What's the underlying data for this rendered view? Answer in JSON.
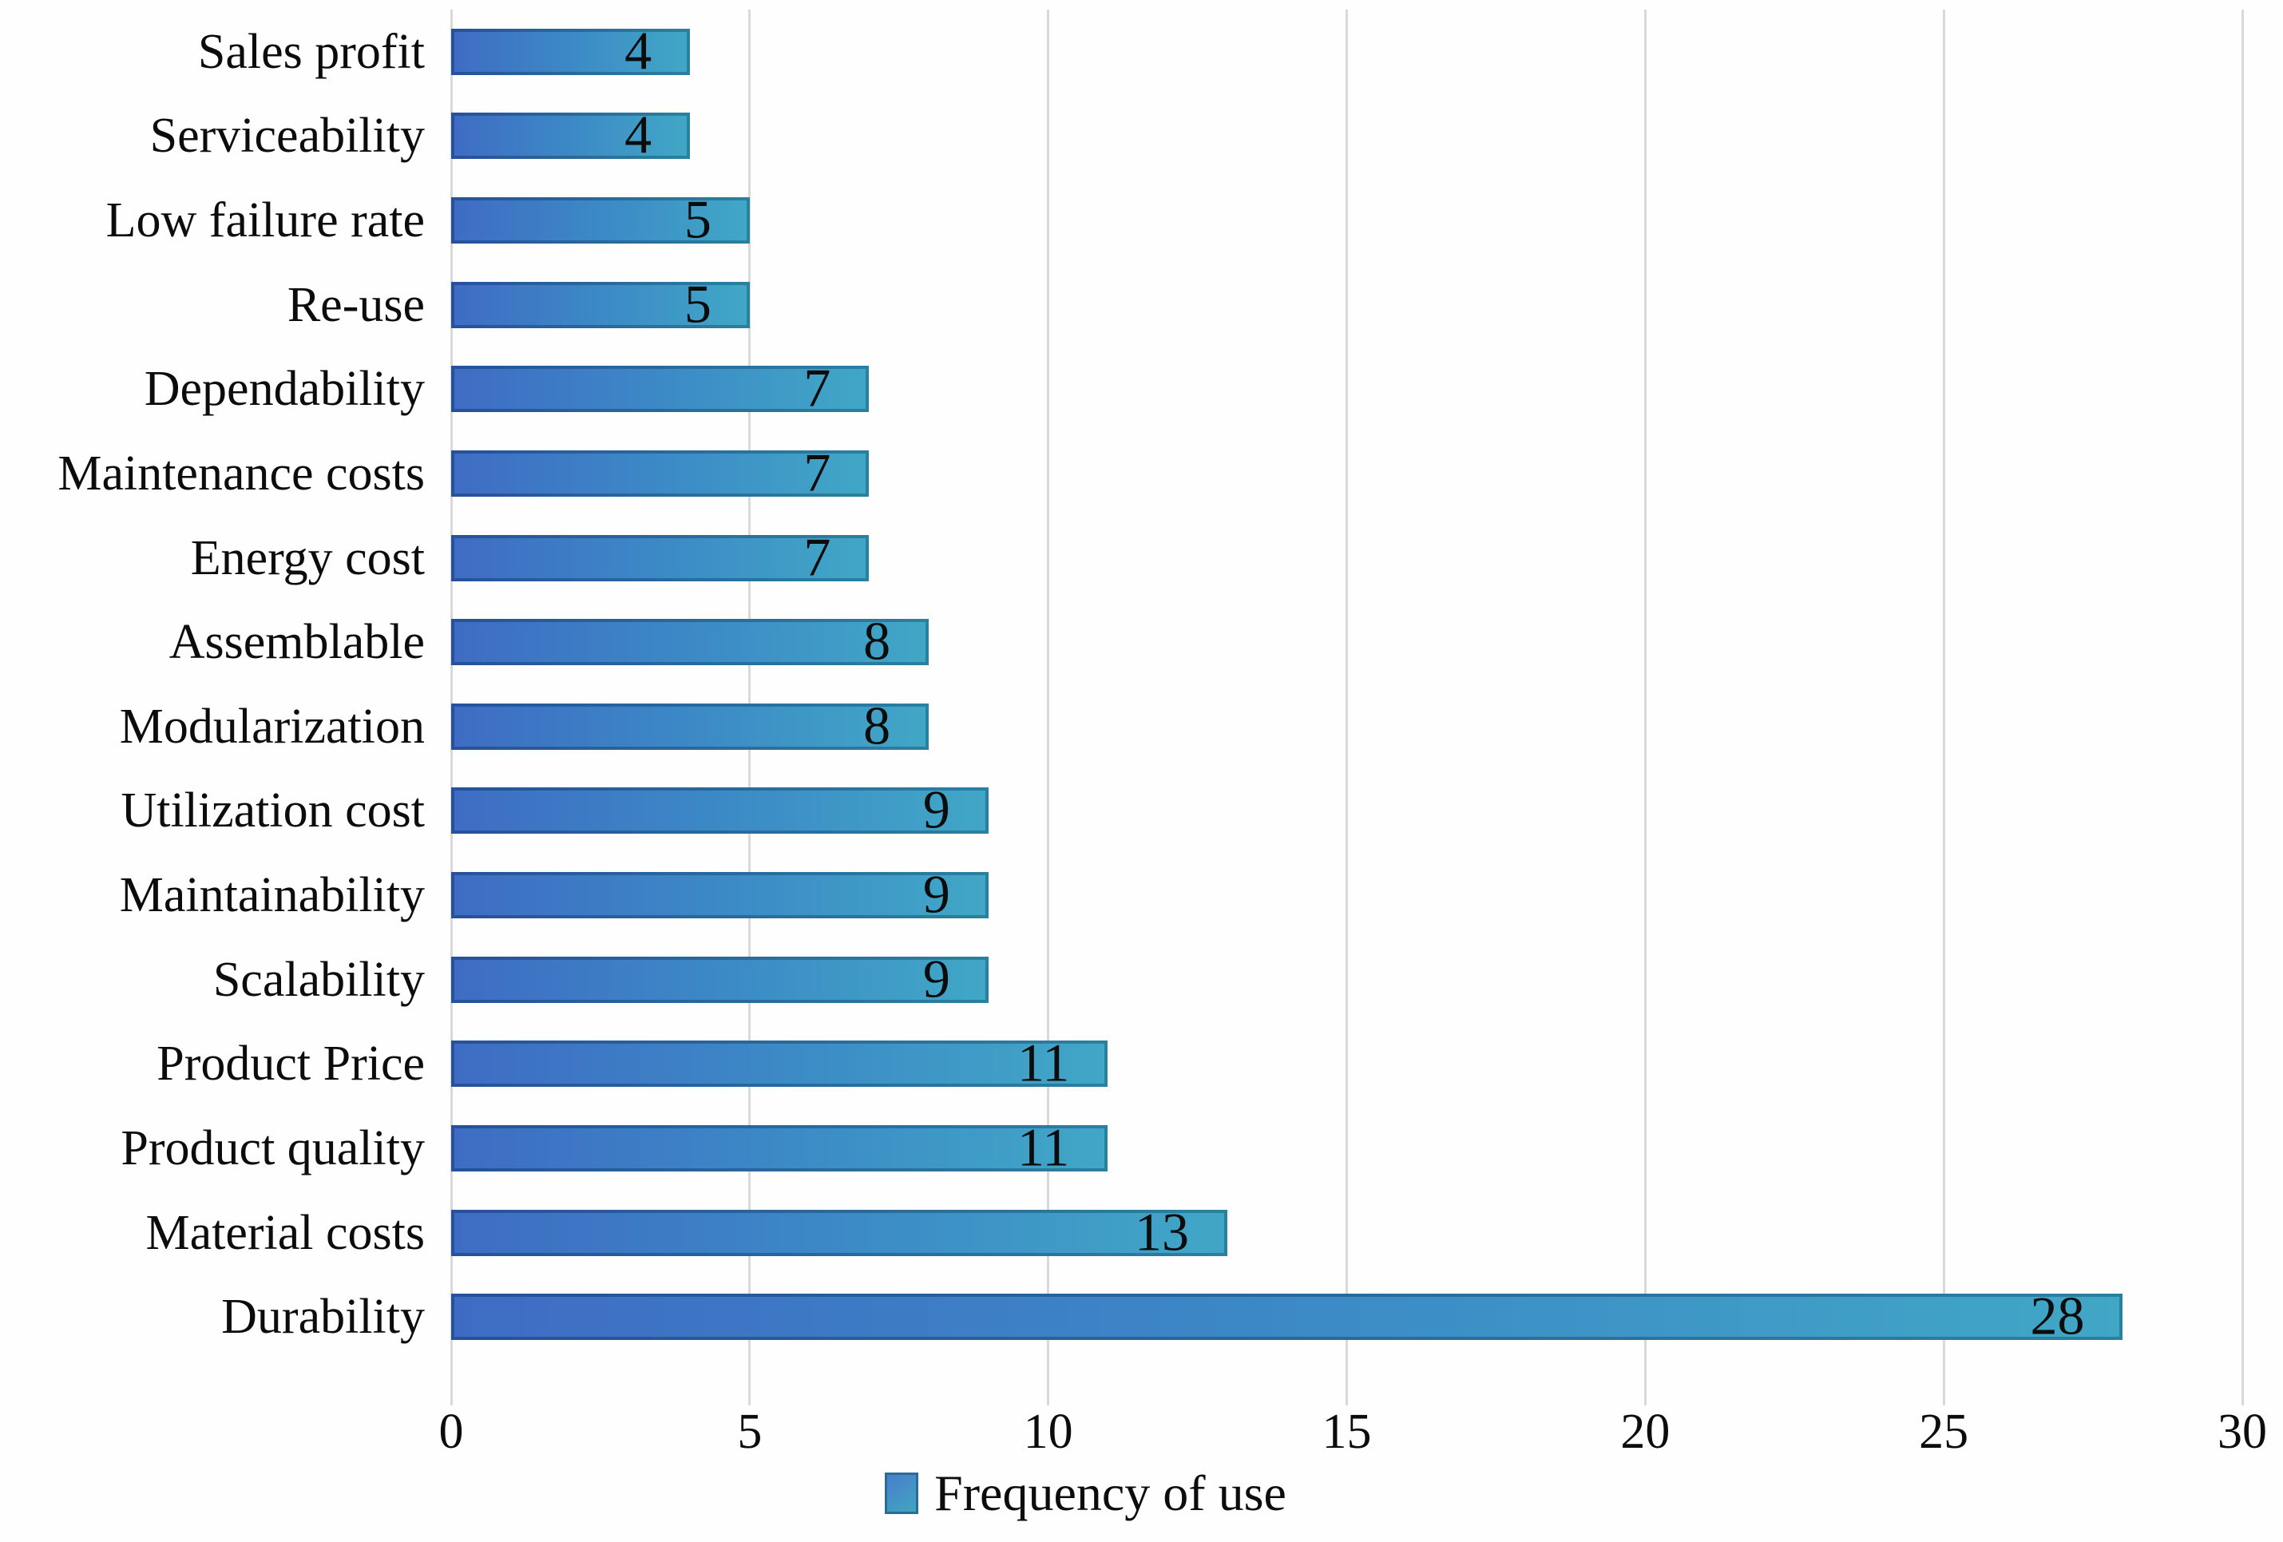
{
  "chart_data": {
    "type": "bar",
    "orientation": "horizontal",
    "title": "",
    "categories": [
      "Sales profit",
      "Serviceability",
      "Low failure rate",
      "Re-use",
      "Dependability",
      "Maintenance costs",
      "Energy cost",
      "Assemblable",
      "Modularization",
      "Utilization cost",
      "Maintainability",
      "Scalability",
      "Product Price",
      "Product quality",
      "Material costs",
      "Durability"
    ],
    "values": [
      4,
      4,
      5,
      5,
      7,
      7,
      7,
      8,
      8,
      9,
      9,
      9,
      11,
      11,
      13,
      28
    ],
    "value_labels_shown": true,
    "xlabel": "",
    "ylabel": "",
    "xlim": [
      0,
      30
    ],
    "xticks": [
      0,
      5,
      10,
      15,
      20,
      25,
      30
    ],
    "grid": "vertical-on",
    "legend_position": "bottom-center",
    "legend_label": "Frequency of use",
    "colors": {
      "bar_gradient_start": "#3e6cc4",
      "bar_gradient_end": "#41a7c6",
      "bar_border_start": "#27519a",
      "bar_border_end": "#2a809f",
      "gridline": "#d9d9d9",
      "text": "#0c0c0c",
      "background": "#fefefe"
    }
  }
}
